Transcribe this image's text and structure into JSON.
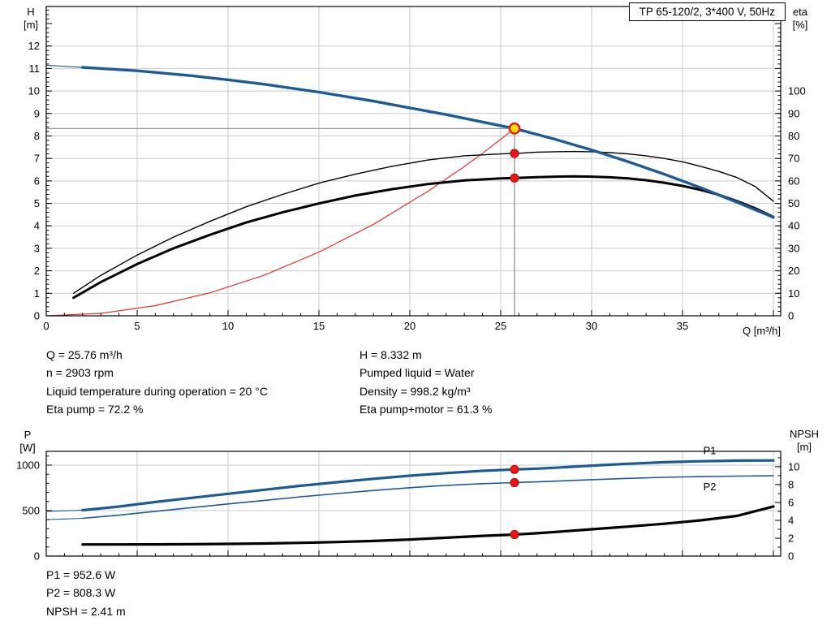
{
  "colors": {
    "grid": "#c9c9c9",
    "frame": "#000000",
    "duty_line": "#8a8a8a",
    "duty_marker_fill": "#ffe000",
    "duty_marker_ring": "#e81616",
    "dot_fill": "#ee1515",
    "dot_ring": "#991111",
    "curve_blue": "#1e5a96",
    "curve_black": "#000000",
    "curve_red": "#e03333"
  },
  "readouts": {
    "q": "Q = 25.76 m³/h",
    "n": "n = 2903 rpm",
    "liquid_temp": "Liquid temperature during operation = 20 °C",
    "eta_pump": "Eta pump = 72.2 %",
    "h": "H = 8.332 m",
    "pumped_liquid": "Pumped liquid = Water",
    "density": "Density = 998.2 kg/m³",
    "eta_pump_motor": "Eta pump+motor = 61.3 %",
    "p1": "P1 = 952.6 W",
    "p2": "P2 = 808.3 W",
    "npsh": "NPSH = 2.41 m"
  },
  "chart_data": [
    {
      "type": "line",
      "title": "TP 65-120/2, 3*400 V, 50Hz",
      "x": {
        "title": "Q [m³/h]",
        "min": 0,
        "max": 40.4,
        "minor": 1,
        "major": 5,
        "label_values": [
          0,
          5,
          10,
          15,
          20,
          25,
          30,
          35
        ]
      },
      "left": {
        "title_lines": [
          "H",
          "[m]"
        ],
        "min": 0,
        "max": 13.76,
        "minor": 0.2,
        "major": 1,
        "label_values": [
          0,
          1,
          2,
          3,
          4,
          5,
          6,
          7,
          8,
          9,
          10,
          11,
          12
        ]
      },
      "right": {
        "title_lines": [
          "eta",
          "[%]"
        ],
        "min": 0,
        "max": 137.6,
        "minor": 2,
        "major": 10,
        "label_values": [
          0,
          10,
          20,
          30,
          40,
          50,
          60,
          70,
          80,
          90,
          100
        ]
      },
      "grid_v": [
        5,
        10,
        15,
        20,
        25,
        30,
        35,
        40
      ],
      "grid_h": [
        1,
        2,
        3,
        4,
        5,
        6,
        7,
        8,
        9,
        10,
        11,
        12
      ],
      "duty_lines": {
        "x": 25.76,
        "y": 8.332
      },
      "series": [
        {
          "name": "system-curve",
          "color": "#e03333",
          "width": 1.2,
          "axis": "left",
          "points": [
            [
              0,
              0
            ],
            [
              3,
              0.11
            ],
            [
              6,
              0.45
            ],
            [
              9,
              1.02
            ],
            [
              12,
              1.81
            ],
            [
              15,
              2.83
            ],
            [
              18,
              4.07
            ],
            [
              21,
              5.54
            ],
            [
              23,
              6.64
            ],
            [
              24,
              7.23
            ],
            [
              25,
              7.85
            ],
            [
              25.76,
              8.332
            ]
          ]
        },
        {
          "name": "eta-pump-motor-curve",
          "color": "#000000",
          "width": 3,
          "axis": "right",
          "points": [
            [
              1.5,
              8
            ],
            [
              3,
              15
            ],
            [
              5,
              23
            ],
            [
              7,
              30
            ],
            [
              9,
              36
            ],
            [
              11,
              41.5
            ],
            [
              13,
              46
            ],
            [
              15,
              50
            ],
            [
              17,
              53.5
            ],
            [
              19,
              56.3
            ],
            [
              21,
              58.6
            ],
            [
              23,
              60.2
            ],
            [
              25,
              61.1
            ],
            [
              25.76,
              61.3
            ],
            [
              27,
              61.7
            ],
            [
              28,
              61.9
            ],
            [
              29,
              62
            ],
            [
              30,
              61.9
            ],
            [
              31,
              61.6
            ],
            [
              32,
              61.1
            ],
            [
              33,
              60.3
            ],
            [
              34,
              59.2
            ],
            [
              35,
              57.8
            ],
            [
              36,
              56
            ],
            [
              37,
              53.8
            ],
            [
              38,
              51
            ],
            [
              39,
              47.8
            ],
            [
              40,
              44
            ]
          ]
        },
        {
          "name": "eta-pump-curve",
          "color": "#000000",
          "width": 1.4,
          "axis": "right",
          "points": [
            [
              1.5,
              10
            ],
            [
              3,
              18
            ],
            [
              5,
              27
            ],
            [
              7,
              35
            ],
            [
              9,
              42
            ],
            [
              11,
              48.5
            ],
            [
              13,
              54
            ],
            [
              15,
              59
            ],
            [
              17,
              63
            ],
            [
              19,
              66.5
            ],
            [
              21,
              69.3
            ],
            [
              23,
              71.2
            ],
            [
              25,
              72
            ],
            [
              25.76,
              72.2
            ],
            [
              27,
              72.8
            ],
            [
              28,
              73
            ],
            [
              29,
              73.1
            ],
            [
              30,
              73
            ],
            [
              31,
              72.6
            ],
            [
              32,
              72
            ],
            [
              33,
              71.2
            ],
            [
              34,
              70
            ],
            [
              35,
              68.5
            ],
            [
              36,
              66.5
            ],
            [
              37,
              64.2
            ],
            [
              38,
              61.5
            ],
            [
              39,
              57.5
            ],
            [
              40,
              51
            ]
          ]
        },
        {
          "name": "head-curve-lead",
          "color": "#1e5a96",
          "width": 1.2,
          "axis": "left",
          "points": [
            [
              0,
              11.15
            ],
            [
              1,
              11.1
            ],
            [
              2,
              11.05
            ]
          ]
        },
        {
          "name": "head-curve",
          "color": "#1e5a96",
          "width": 3.4,
          "axis": "left",
          "points": [
            [
              2,
              11.05
            ],
            [
              5,
              10.9
            ],
            [
              8,
              10.68
            ],
            [
              10,
              10.5
            ],
            [
              12,
              10.3
            ],
            [
              15,
              9.95
            ],
            [
              18,
              9.55
            ],
            [
              20,
              9.25
            ],
            [
              22,
              8.95
            ],
            [
              24,
              8.62
            ],
            [
              25.76,
              8.332
            ],
            [
              27,
              8.07
            ],
            [
              28,
              7.85
            ],
            [
              30,
              7.38
            ],
            [
              32,
              6.86
            ],
            [
              34,
              6.3
            ],
            [
              36,
              5.7
            ],
            [
              38,
              5.05
            ],
            [
              40,
              4.38
            ]
          ]
        }
      ],
      "markers": [
        {
          "x": 25.76,
          "y": 72.2,
          "axis": "right",
          "kind": "dot"
        },
        {
          "x": 25.76,
          "y": 61.3,
          "axis": "right",
          "kind": "dot"
        },
        {
          "x": 25.76,
          "y": 8.332,
          "axis": "left",
          "kind": "duty"
        }
      ],
      "labels": []
    },
    {
      "type": "line",
      "title": "",
      "x": {
        "min": 0,
        "max": 40.4,
        "minor": 1,
        "major": 5,
        "label_values": []
      },
      "left": {
        "title_lines": [
          "P",
          "[W]"
        ],
        "min": 0,
        "max": 1152,
        "minor": 100,
        "major": 500,
        "label_values": [
          0,
          500,
          1000
        ]
      },
      "right": {
        "title_lines": [
          "NPSH",
          "[m]"
        ],
        "min": 0,
        "max": 11.72,
        "minor": 1,
        "major": 2,
        "label_values": [
          0,
          2,
          4,
          6,
          8,
          10
        ]
      },
      "grid_v": [
        5,
        10,
        15,
        20,
        25,
        30,
        35,
        40
      ],
      "grid_h": [
        500,
        1000
      ],
      "series": [
        {
          "name": "p2-curve-lead",
          "color": "#1e5a96",
          "width": 1.1,
          "axis": "left",
          "points": [
            [
              0,
              402
            ],
            [
              1,
              408
            ],
            [
              2,
              415
            ]
          ]
        },
        {
          "name": "p2-curve",
          "color": "#1e5a96",
          "width": 1.6,
          "axis": "left",
          "points": [
            [
              2,
              415
            ],
            [
              4,
              450
            ],
            [
              6,
              492
            ],
            [
              8,
              533
            ],
            [
              10,
              573
            ],
            [
              12,
              613
            ],
            [
              14,
              652
            ],
            [
              16,
              688
            ],
            [
              18,
              722
            ],
            [
              20,
              752
            ],
            [
              22,
              778
            ],
            [
              24,
              797
            ],
            [
              25.76,
              808.3
            ],
            [
              27,
              816
            ],
            [
              28,
              824
            ],
            [
              30,
              840
            ],
            [
              32,
              855
            ],
            [
              34,
              866
            ],
            [
              36,
              874
            ],
            [
              38,
              880
            ],
            [
              40,
              883
            ]
          ]
        },
        {
          "name": "p1-curve-lead",
          "color": "#1e5a96",
          "width": 1.1,
          "axis": "left",
          "points": [
            [
              0,
              492
            ],
            [
              1,
              498
            ],
            [
              2,
              505
            ]
          ]
        },
        {
          "name": "p1-curve",
          "color": "#1e5a96",
          "width": 3.2,
          "axis": "left",
          "points": [
            [
              2,
              505
            ],
            [
              4,
              545
            ],
            [
              6,
              595
            ],
            [
              8,
              640
            ],
            [
              10,
              685
            ],
            [
              12,
              730
            ],
            [
              14,
              773
            ],
            [
              16,
              813
            ],
            [
              18,
              850
            ],
            [
              20,
              884
            ],
            [
              22,
              913
            ],
            [
              24,
              938
            ],
            [
              25.76,
              952.6
            ],
            [
              27,
              962
            ],
            [
              28,
              972
            ],
            [
              30,
              995
            ],
            [
              32,
              1015
            ],
            [
              34,
              1032
            ],
            [
              36,
              1043
            ],
            [
              38,
              1050
            ],
            [
              40,
              1052
            ]
          ]
        },
        {
          "name": "npsh-curve",
          "color": "#000000",
          "width": 3.2,
          "axis": "right",
          "points": [
            [
              2,
              1.3
            ],
            [
              4,
              1.3
            ],
            [
              6,
              1.31
            ],
            [
              8,
              1.33
            ],
            [
              10,
              1.36
            ],
            [
              12,
              1.41
            ],
            [
              14,
              1.48
            ],
            [
              16,
              1.57
            ],
            [
              18,
              1.69
            ],
            [
              20,
              1.85
            ],
            [
              22,
              2.05
            ],
            [
              24,
              2.26
            ],
            [
              25.76,
              2.41
            ],
            [
              27,
              2.55
            ],
            [
              28,
              2.7
            ],
            [
              30,
              3
            ],
            [
              32,
              3.3
            ],
            [
              34,
              3.62
            ],
            [
              36,
              4
            ],
            [
              38,
              4.5
            ],
            [
              40,
              5.55
            ]
          ]
        }
      ],
      "markers": [
        {
          "x": 25.76,
          "y": 952.6,
          "axis": "left",
          "kind": "dot"
        },
        {
          "x": 25.76,
          "y": 808.3,
          "axis": "left",
          "kind": "dot"
        },
        {
          "x": 25.76,
          "y": 2.41,
          "axis": "right",
          "kind": "dot"
        }
      ],
      "labels": [
        {
          "text": "P1",
          "x": 36.5,
          "y": 1122,
          "axis": "left",
          "color": "#1e5a96"
        },
        {
          "text": "P2",
          "x": 36.5,
          "y": 722,
          "axis": "left",
          "color": "#1e5a96"
        }
      ]
    }
  ]
}
